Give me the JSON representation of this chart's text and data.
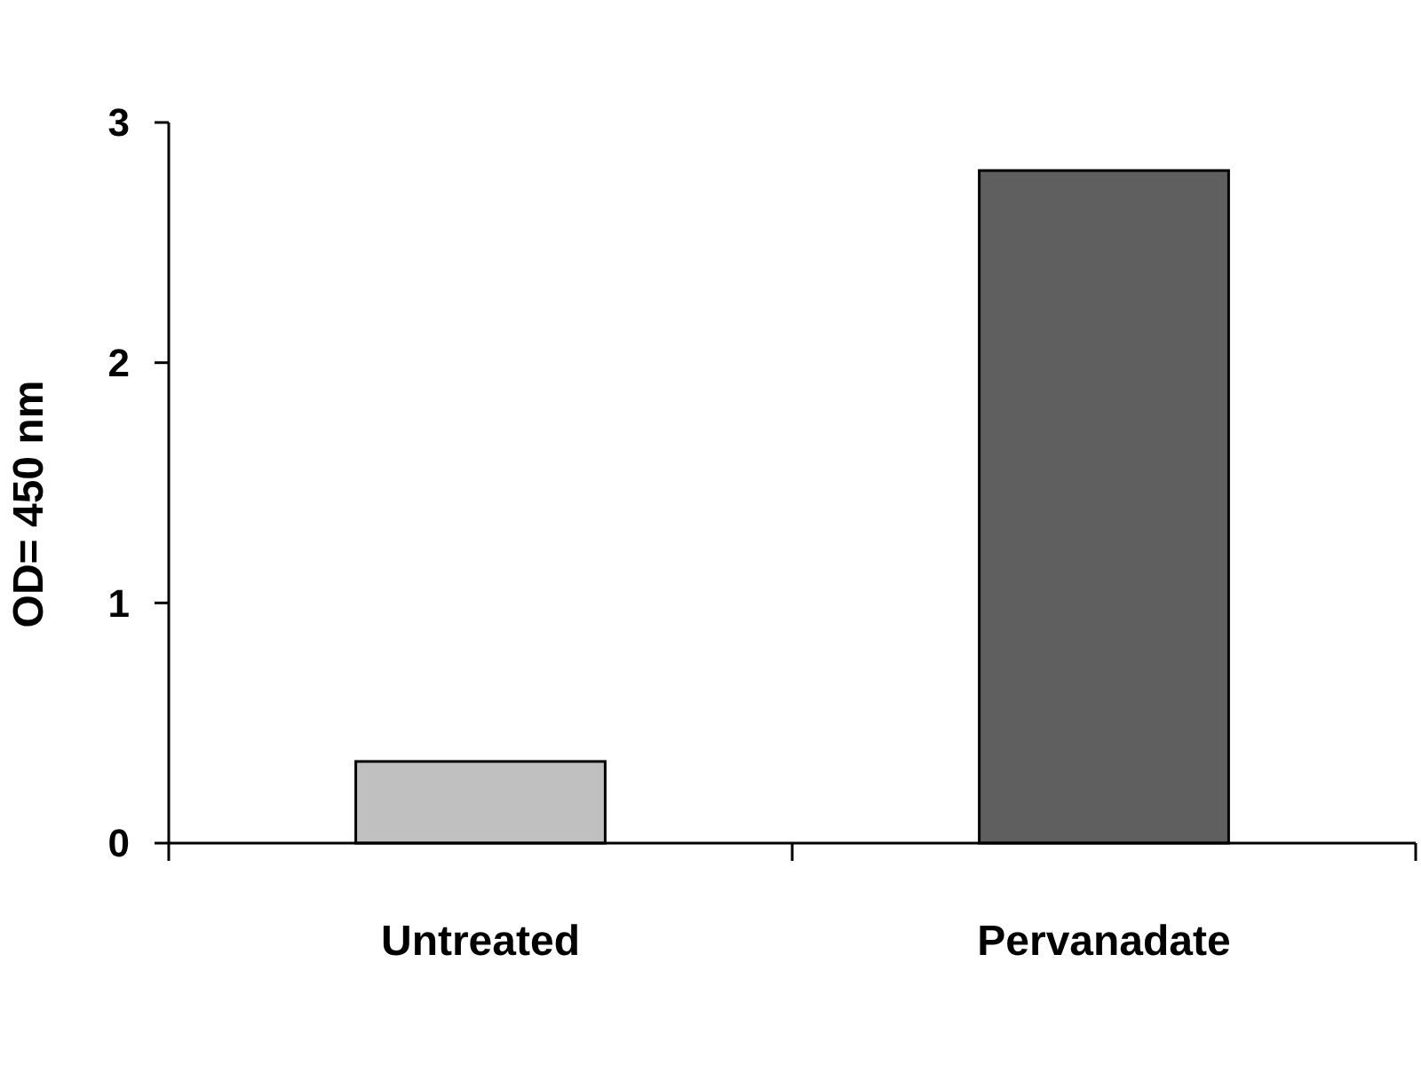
{
  "chart_data": {
    "type": "bar",
    "ylabel": "OD= 450 nm",
    "categories": [
      "Untreated",
      "Pervanadate"
    ],
    "values": [
      0.34,
      2.8
    ],
    "colors": [
      "#c0c0c0",
      "#5f5f5f"
    ],
    "ylim": [
      0,
      3
    ],
    "yticks": [
      0,
      1,
      2,
      3
    ],
    "grid": false
  }
}
